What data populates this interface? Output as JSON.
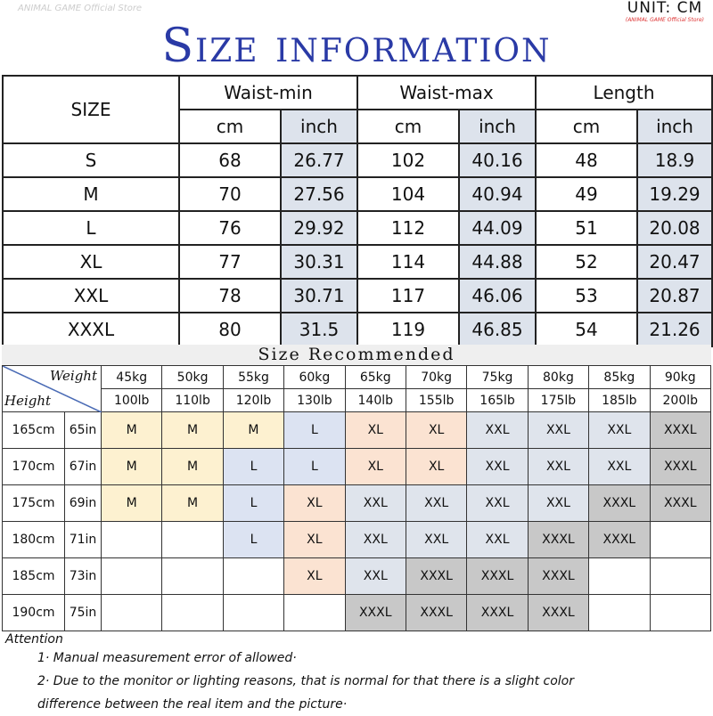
{
  "title": "Size information",
  "unit": {
    "label": "UNIT: CM",
    "store": "(ANIMAL GAME Official Store)"
  },
  "watermark": "ANIMAL GAME Official Store",
  "colors": {
    "title": "#2a3aa6",
    "M": "#fdf1d0",
    "L": "#dce3f2",
    "XL": "#fbe3d2",
    "XXL": "#dfe4ec",
    "XXXL": "#c8c8c8",
    "inch": "#dde3ec"
  },
  "size_table": {
    "size_header": "SIZE",
    "groups": [
      "Waist-min",
      "Waist-max",
      "Length"
    ],
    "units": [
      "cm",
      "inch"
    ],
    "rows": [
      [
        "S",
        "68",
        "26.77",
        "102",
        "40.16",
        "48",
        "18.9"
      ],
      [
        "M",
        "70",
        "27.56",
        "104",
        "40.94",
        "49",
        "19.29"
      ],
      [
        "L",
        "76",
        "29.92",
        "112",
        "44.09",
        "51",
        "20.08"
      ],
      [
        "XL",
        "77",
        "30.31",
        "114",
        "44.88",
        "52",
        "20.47"
      ],
      [
        "XXL",
        "78",
        "30.71",
        "117",
        "46.06",
        "53",
        "20.87"
      ],
      [
        "XXXL",
        "80",
        "31.5",
        "119",
        "46.85",
        "54",
        "21.26"
      ]
    ]
  },
  "recommended": {
    "title": "Size Recommended",
    "weight_label": "Weight",
    "height_label": "Height",
    "kg": [
      "45kg",
      "50kg",
      "55kg",
      "60kg",
      "65kg",
      "70kg",
      "75kg",
      "80kg",
      "85kg",
      "90kg"
    ],
    "lb": [
      "100lb",
      "110lb",
      "120lb",
      "130lb",
      "140lb",
      "155lb",
      "165lb",
      "175lb",
      "185lb",
      "200lb"
    ],
    "rows": [
      {
        "cm": "165cm",
        "in": "65in",
        "sizes": [
          "M",
          "M",
          "M",
          "L",
          "XL",
          "XL",
          "XXL",
          "XXL",
          "XXL",
          "XXXL"
        ]
      },
      {
        "cm": "170cm",
        "in": "67in",
        "sizes": [
          "M",
          "M",
          "L",
          "L",
          "XL",
          "XL",
          "XXL",
          "XXL",
          "XXL",
          "XXXL"
        ]
      },
      {
        "cm": "175cm",
        "in": "69in",
        "sizes": [
          "M",
          "M",
          "L",
          "XL",
          "XXL",
          "XXL",
          "XXL",
          "XXL",
          "XXXL",
          "XXXL"
        ]
      },
      {
        "cm": "180cm",
        "in": "71in",
        "sizes": [
          "",
          "",
          "L",
          "XL",
          "XXL",
          "XXL",
          "XXL",
          "XXXL",
          "XXXL",
          ""
        ]
      },
      {
        "cm": "185cm",
        "in": "73in",
        "sizes": [
          "",
          "",
          "",
          "XL",
          "XXL",
          "XXXL",
          "XXXL",
          "XXXL",
          "",
          ""
        ]
      },
      {
        "cm": "190cm",
        "in": "75in",
        "sizes": [
          "",
          "",
          "",
          "",
          "XXXL",
          "XXXL",
          "XXXL",
          "XXXL",
          "",
          ""
        ]
      }
    ]
  },
  "attention": {
    "heading": "Attention",
    "notes": [
      "1· Manual measurement error of allowed·",
      "2·  Due to the monitor or lighting reasons, that is normal for that there is a slight color",
      "difference between the real item and the picture·"
    ]
  }
}
